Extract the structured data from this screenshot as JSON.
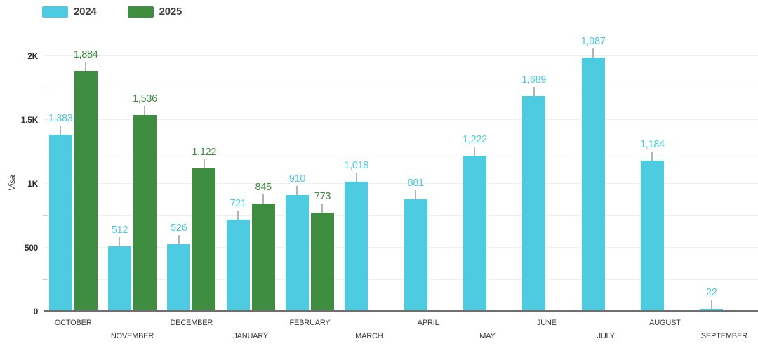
{
  "legend": {
    "items": [
      {
        "label": "2024",
        "color": "#4DCBE0"
      },
      {
        "label": "2025",
        "color": "#3F8D41"
      }
    ]
  },
  "chart_data": {
    "type": "bar",
    "title": "",
    "xlabel": "",
    "ylabel": "Visa",
    "legend_position": "top-left",
    "grid": true,
    "categories": [
      "OCTOBER",
      "NOVEMBER",
      "DECEMBER",
      "JANUARY",
      "FEBRUARY",
      "MARCH",
      "APRIL",
      "MAY",
      "JUNE",
      "JULY",
      "AUGUST",
      "SEPTEMBER"
    ],
    "series": [
      {
        "name": "2024",
        "color": "#4DCBE0",
        "values": [
          1383,
          512,
          526,
          721,
          910,
          1018,
          881,
          1222,
          1689,
          1987,
          1184,
          22
        ],
        "labels": [
          "1,383",
          "512",
          "526",
          "721",
          "910",
          "1,018",
          "881",
          "1,222",
          "1,689",
          "1,987",
          "1,184",
          "22"
        ]
      },
      {
        "name": "2025",
        "color": "#3F8D41",
        "values": [
          1884,
          1536,
          1122,
          845,
          773,
          null,
          null,
          null,
          null,
          null,
          null,
          null
        ],
        "labels": [
          "1,884",
          "1,536",
          "1,122",
          "845",
          "773",
          null,
          null,
          null,
          null,
          null,
          null,
          null
        ]
      }
    ],
    "ylim": [
      0,
      2137
    ],
    "yticks": [
      {
        "value": 0,
        "label": "0"
      },
      {
        "value": 500,
        "label": "500"
      },
      {
        "value": 1000,
        "label": "1K"
      },
      {
        "value": 1500,
        "label": "1.5K"
      },
      {
        "value": 2000,
        "label": "2K"
      }
    ],
    "minor_tick_values": [
      250,
      750,
      1250,
      1750
    ],
    "gridline_step": 250
  },
  "colors": {
    "axis_line": "#6f6f6f",
    "gridline": "#f0f0f0",
    "stem": "#b3b3b3",
    "tick_label": "#2e2e2e",
    "month_label": "#383838"
  }
}
